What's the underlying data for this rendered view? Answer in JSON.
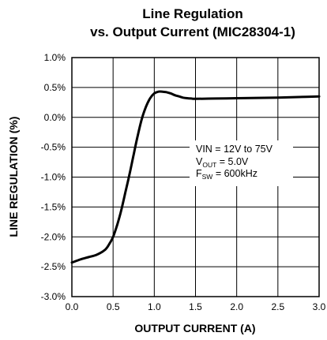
{
  "chart_data": {
    "type": "line",
    "title": "Line Regulation",
    "subtitle": "vs. Output Current (MIC28304-1)",
    "xlabel": "OUTPUT CURRENT (A)",
    "ylabel": "LINE REGULATION (%)",
    "xlim": [
      0,
      3
    ],
    "ylim": [
      -3,
      1
    ],
    "xticks": [
      0,
      0.5,
      1,
      1.5,
      2,
      2.5,
      3
    ],
    "yticks": [
      1,
      0.5,
      0,
      -0.5,
      -1,
      -1.5,
      -2,
      -2.5,
      -3
    ],
    "xtick_labels": [
      "0.0",
      "0.5",
      "1.0",
      "1.5",
      "2.0",
      "2.5",
      "3.0"
    ],
    "ytick_labels": [
      "1.0%",
      "0.5%",
      "0.0%",
      "-0.5%",
      "-1.0%",
      "-1.5%",
      "-2.0%",
      "-2.5%",
      "-3.0%"
    ],
    "grid": true,
    "series": [
      {
        "x": [
          0.0,
          0.1,
          0.2,
          0.3,
          0.4,
          0.45,
          0.5,
          0.55,
          0.6,
          0.65,
          0.7,
          0.75,
          0.8,
          0.85,
          0.9,
          0.95,
          1.0,
          1.05,
          1.1,
          1.15,
          1.2,
          1.25,
          1.3,
          1.35,
          1.4,
          1.45,
          1.5,
          1.75,
          2.0,
          2.25,
          2.5,
          2.75,
          3.0
        ],
        "y": [
          -2.43,
          -2.38,
          -2.34,
          -2.3,
          -2.22,
          -2.13,
          -2.0,
          -1.8,
          -1.55,
          -1.25,
          -0.95,
          -0.62,
          -0.3,
          -0.02,
          0.18,
          0.32,
          0.4,
          0.43,
          0.43,
          0.42,
          0.4,
          0.37,
          0.35,
          0.33,
          0.32,
          0.315,
          0.31,
          0.315,
          0.32,
          0.325,
          0.33,
          0.34,
          0.35
        ],
        "color": "#000000"
      }
    ],
    "annotation": {
      "line1": "VIN = 12V to 75V",
      "line2_main": "V",
      "line2_sub": "OUT",
      "line2_rest": " = 5.0V",
      "line3_main": "F",
      "line3_sub": "SW",
      "line3_rest": " = 600kHz"
    }
  }
}
